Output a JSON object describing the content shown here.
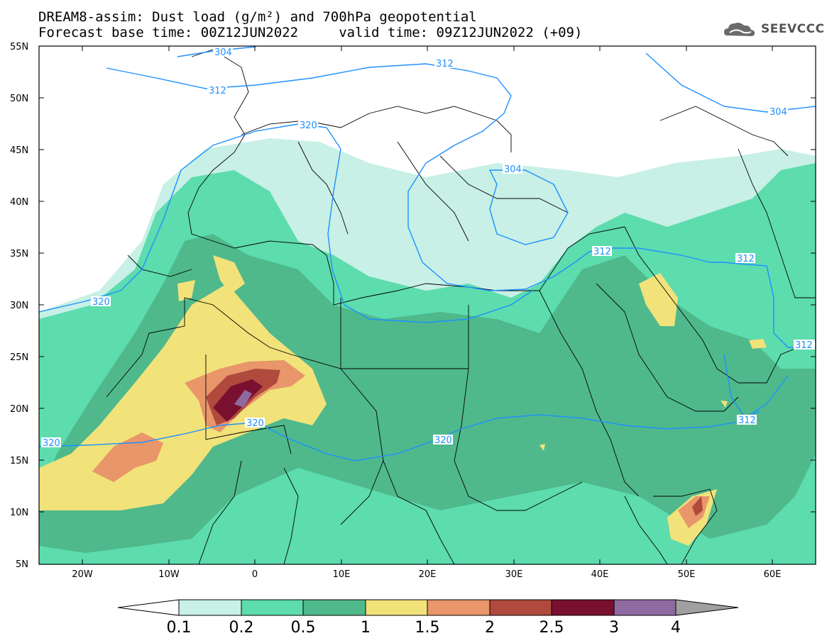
{
  "title_line1": "DREAM8-assim: Dust load (g/m²) and 700hPa geopotential",
  "title_line2": "Forecast base time: 00Z12JUN2022     valid time: 09Z12JUN2022 (+09)",
  "logo": {
    "text": "SEEVCCC",
    "icon": "cloud-logo-icon"
  },
  "axes": {
    "lat_labels": [
      "55N",
      "50N",
      "45N",
      "40N",
      "35N",
      "30N",
      "25N",
      "20N",
      "15N",
      "10N",
      "5N"
    ],
    "lon_labels": [
      "20W",
      "10W",
      "0",
      "10E",
      "20E",
      "30E",
      "40E",
      "50E",
      "60E"
    ]
  },
  "colorbar": {
    "labels": [
      "0.1",
      "0.2",
      "0.5",
      "1",
      "1.5",
      "2",
      "2.5",
      "3",
      "4"
    ],
    "colors": [
      "#c8f0e6",
      "#5ddcae",
      "#4fb98c",
      "#f2e27a",
      "#e8966a",
      "#b04a3c",
      "#7a1030",
      "#8e6aa0"
    ],
    "under_color": "#ffffff",
    "over_color": "#a0a0a0"
  },
  "contour_labels": [
    "304",
    "312",
    "312",
    "320",
    "304",
    "312",
    "312",
    "320",
    "320",
    "320",
    "312",
    "312",
    "304"
  ],
  "map_colors": {
    "land_border": "#000000",
    "contour": "#1e90ff"
  }
}
